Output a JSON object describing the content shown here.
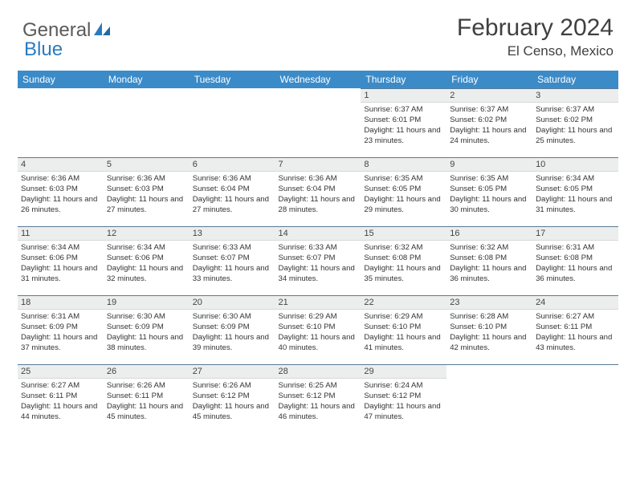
{
  "logo": {
    "part1": "General",
    "part2": "Blue"
  },
  "title": "February 2024",
  "location": "El Censo, Mexico",
  "colors": {
    "header_bg": "#3b8bc9",
    "header_text": "#ffffff",
    "daynum_bg": "#eceded",
    "day_border": "#5a7a95",
    "logo_gray": "#5a5a5a",
    "logo_blue": "#2b7bbf"
  },
  "daysOfWeek": [
    "Sunday",
    "Monday",
    "Tuesday",
    "Wednesday",
    "Thursday",
    "Friday",
    "Saturday"
  ],
  "emptyLeading": 4,
  "cells": [
    {
      "n": "1",
      "sr": "6:37 AM",
      "ss": "6:01 PM",
      "dl": "11 hours and 23 minutes."
    },
    {
      "n": "2",
      "sr": "6:37 AM",
      "ss": "6:02 PM",
      "dl": "11 hours and 24 minutes."
    },
    {
      "n": "3",
      "sr": "6:37 AM",
      "ss": "6:02 PM",
      "dl": "11 hours and 25 minutes."
    },
    {
      "n": "4",
      "sr": "6:36 AM",
      "ss": "6:03 PM",
      "dl": "11 hours and 26 minutes."
    },
    {
      "n": "5",
      "sr": "6:36 AM",
      "ss": "6:03 PM",
      "dl": "11 hours and 27 minutes."
    },
    {
      "n": "6",
      "sr": "6:36 AM",
      "ss": "6:04 PM",
      "dl": "11 hours and 27 minutes."
    },
    {
      "n": "7",
      "sr": "6:36 AM",
      "ss": "6:04 PM",
      "dl": "11 hours and 28 minutes."
    },
    {
      "n": "8",
      "sr": "6:35 AM",
      "ss": "6:05 PM",
      "dl": "11 hours and 29 minutes."
    },
    {
      "n": "9",
      "sr": "6:35 AM",
      "ss": "6:05 PM",
      "dl": "11 hours and 30 minutes."
    },
    {
      "n": "10",
      "sr": "6:34 AM",
      "ss": "6:05 PM",
      "dl": "11 hours and 31 minutes."
    },
    {
      "n": "11",
      "sr": "6:34 AM",
      "ss": "6:06 PM",
      "dl": "11 hours and 31 minutes."
    },
    {
      "n": "12",
      "sr": "6:34 AM",
      "ss": "6:06 PM",
      "dl": "11 hours and 32 minutes."
    },
    {
      "n": "13",
      "sr": "6:33 AM",
      "ss": "6:07 PM",
      "dl": "11 hours and 33 minutes."
    },
    {
      "n": "14",
      "sr": "6:33 AM",
      "ss": "6:07 PM",
      "dl": "11 hours and 34 minutes."
    },
    {
      "n": "15",
      "sr": "6:32 AM",
      "ss": "6:08 PM",
      "dl": "11 hours and 35 minutes."
    },
    {
      "n": "16",
      "sr": "6:32 AM",
      "ss": "6:08 PM",
      "dl": "11 hours and 36 minutes."
    },
    {
      "n": "17",
      "sr": "6:31 AM",
      "ss": "6:08 PM",
      "dl": "11 hours and 36 minutes."
    },
    {
      "n": "18",
      "sr": "6:31 AM",
      "ss": "6:09 PM",
      "dl": "11 hours and 37 minutes."
    },
    {
      "n": "19",
      "sr": "6:30 AM",
      "ss": "6:09 PM",
      "dl": "11 hours and 38 minutes."
    },
    {
      "n": "20",
      "sr": "6:30 AM",
      "ss": "6:09 PM",
      "dl": "11 hours and 39 minutes."
    },
    {
      "n": "21",
      "sr": "6:29 AM",
      "ss": "6:10 PM",
      "dl": "11 hours and 40 minutes."
    },
    {
      "n": "22",
      "sr": "6:29 AM",
      "ss": "6:10 PM",
      "dl": "11 hours and 41 minutes."
    },
    {
      "n": "23",
      "sr": "6:28 AM",
      "ss": "6:10 PM",
      "dl": "11 hours and 42 minutes."
    },
    {
      "n": "24",
      "sr": "6:27 AM",
      "ss": "6:11 PM",
      "dl": "11 hours and 43 minutes."
    },
    {
      "n": "25",
      "sr": "6:27 AM",
      "ss": "6:11 PM",
      "dl": "11 hours and 44 minutes."
    },
    {
      "n": "26",
      "sr": "6:26 AM",
      "ss": "6:11 PM",
      "dl": "11 hours and 45 minutes."
    },
    {
      "n": "27",
      "sr": "6:26 AM",
      "ss": "6:12 PM",
      "dl": "11 hours and 45 minutes."
    },
    {
      "n": "28",
      "sr": "6:25 AM",
      "ss": "6:12 PM",
      "dl": "11 hours and 46 minutes."
    },
    {
      "n": "29",
      "sr": "6:24 AM",
      "ss": "6:12 PM",
      "dl": "11 hours and 47 minutes."
    }
  ],
  "labels": {
    "sunrise": "Sunrise:",
    "sunset": "Sunset:",
    "daylight": "Daylight:"
  }
}
